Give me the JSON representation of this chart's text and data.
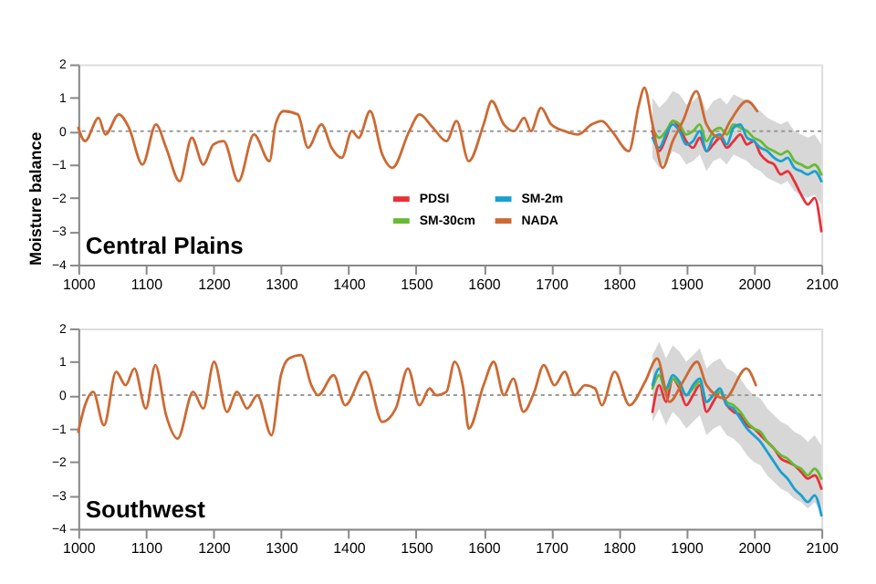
{
  "chart_data": [
    {
      "type": "line",
      "xlabel": null,
      "ylabel": "Moisture balance",
      "annotations": [
        "Central Plains"
      ],
      "xlim": [
        1000,
        2100
      ],
      "xticks": [
        1000,
        1100,
        1200,
        1300,
        1400,
        1500,
        1600,
        1700,
        1800,
        1900,
        2000,
        2100
      ],
      "ylim": [
        -4,
        2
      ],
      "yticks": [
        -4,
        -3,
        -2,
        -1,
        0,
        1,
        2
      ],
      "grid": false,
      "legend": "bottom",
      "line_style": "solid",
      "marker": "none",
      "ref_lines": [
        {
          "axis": "y",
          "value": 0,
          "label": null,
          "color": "#999999",
          "line_style": "dotted"
        }
      ],
      "series": [
        {
          "name": "PDSI",
          "color": "#e8303a",
          "x": [
            1850,
            1860,
            1870,
            1880,
            1890,
            1900,
            1910,
            1920,
            1930,
            1940,
            1950,
            1960,
            1970,
            1980,
            1990,
            2000,
            2010,
            2020,
            2030,
            2040,
            2050,
            2060,
            2070,
            2080,
            2090,
            2100
          ],
          "values": [
            0.0,
            -0.6,
            -0.2,
            0.3,
            0.1,
            -0.3,
            -0.5,
            -0.2,
            -0.6,
            -0.4,
            -0.2,
            -0.5,
            -0.3,
            -0.1,
            -0.4,
            -0.3,
            -0.7,
            -0.9,
            -1.0,
            -1.3,
            -1.2,
            -1.5,
            -1.9,
            -2.2,
            -2.0,
            -3.0
          ]
        },
        {
          "name": "SM-30cm",
          "color": "#66bb33",
          "x": [
            1850,
            1860,
            1870,
            1880,
            1890,
            1900,
            1910,
            1920,
            1930,
            1940,
            1950,
            1960,
            1970,
            1980,
            1990,
            2000,
            2010,
            2020,
            2030,
            2040,
            2050,
            2060,
            2070,
            2080,
            2090,
            2100
          ],
          "values": [
            0.1,
            -0.2,
            0.0,
            0.3,
            0.2,
            -0.1,
            0.0,
            0.2,
            -0.3,
            0.0,
            0.1,
            -0.1,
            0.2,
            0.1,
            0.0,
            -0.2,
            -0.3,
            -0.5,
            -0.6,
            -0.7,
            -0.6,
            -0.9,
            -1.0,
            -1.1,
            -1.0,
            -1.3
          ],
          "lower": [
            -0.8,
            -1.1,
            -0.9,
            -0.6,
            -0.7,
            -1.0,
            -0.9,
            -0.7,
            -1.2,
            -0.9,
            -0.8,
            -1.0,
            -0.7,
            -0.8,
            -0.9,
            -1.1,
            -1.2,
            -1.4,
            -1.5,
            -1.6,
            -1.5,
            -1.8,
            -1.9,
            -2.0,
            -1.9,
            -2.2
          ],
          "upper": [
            1.0,
            0.7,
            0.9,
            1.2,
            1.1,
            0.8,
            0.9,
            1.1,
            0.6,
            0.9,
            1.0,
            0.8,
            1.1,
            1.0,
            0.9,
            0.7,
            0.6,
            0.4,
            0.3,
            0.2,
            0.3,
            0.0,
            -0.1,
            -0.2,
            -0.1,
            -0.4
          ]
        },
        {
          "name": "SM-2m",
          "color": "#1aa0d0",
          "x": [
            1850,
            1860,
            1870,
            1880,
            1890,
            1900,
            1910,
            1920,
            1930,
            1940,
            1950,
            1960,
            1970,
            1980,
            1990,
            2000,
            2010,
            2020,
            2030,
            2040,
            2050,
            2060,
            2070,
            2080,
            2090,
            2100
          ],
          "values": [
            -0.2,
            -0.5,
            -0.1,
            0.2,
            0.0,
            -0.4,
            -0.3,
            0.0,
            -0.6,
            -0.2,
            -0.1,
            -0.4,
            0.1,
            0.2,
            -0.2,
            -0.3,
            -0.5,
            -0.6,
            -0.8,
            -0.9,
            -0.8,
            -1.1,
            -1.2,
            -1.3,
            -1.2,
            -1.5
          ]
        },
        {
          "name": "NADA",
          "color": "#cc6a33",
          "x": [
            1000,
            1010,
            1030,
            1040,
            1060,
            1075,
            1095,
            1115,
            1130,
            1150,
            1168,
            1185,
            1200,
            1215,
            1237,
            1260,
            1283,
            1292,
            1304,
            1325,
            1340,
            1360,
            1375,
            1390,
            1405,
            1415,
            1432,
            1450,
            1465,
            1490,
            1505,
            1525,
            1545,
            1560,
            1578,
            1600,
            1612,
            1630,
            1645,
            1660,
            1670,
            1685,
            1700,
            1720,
            1740,
            1760,
            1775,
            1790,
            1815,
            1830,
            1838,
            1850,
            1865,
            1880,
            1895,
            1915,
            1930,
            1950,
            1965,
            1990,
            2005
          ],
          "values": [
            0.1,
            -0.3,
            0.4,
            -0.1,
            0.5,
            0.1,
            -1.0,
            0.2,
            -0.5,
            -1.5,
            -0.2,
            -1.0,
            -0.4,
            -0.3,
            -1.5,
            -0.1,
            -0.9,
            0.2,
            0.6,
            0.5,
            -0.5,
            0.2,
            -0.5,
            -0.8,
            0.0,
            -0.2,
            0.6,
            -0.7,
            -1.1,
            0.0,
            0.5,
            0.1,
            -0.3,
            0.3,
            -0.9,
            0.2,
            0.9,
            0.2,
            0.0,
            0.4,
            0.0,
            0.7,
            0.2,
            0.0,
            -0.1,
            0.2,
            0.3,
            0.0,
            -0.6,
            0.8,
            1.3,
            0.2,
            -1.1,
            -0.3,
            0.3,
            1.2,
            0.2,
            -0.2,
            0.3,
            0.9,
            0.6
          ]
        }
      ]
    },
    {
      "type": "line",
      "xlabel": null,
      "annotations": [
        "Southwest"
      ],
      "xlim": [
        1000,
        2100
      ],
      "xticks": [
        1000,
        1100,
        1200,
        1300,
        1400,
        1500,
        1600,
        1700,
        1800,
        1900,
        2000,
        2100
      ],
      "ylim": [
        -4,
        2
      ],
      "yticks": [
        -4,
        -3,
        -2,
        -1,
        0,
        1,
        2
      ],
      "grid": false,
      "legend": false,
      "line_style": "solid",
      "marker": "none",
      "ref_lines": [
        {
          "axis": "y",
          "value": 0,
          "label": null,
          "color": "#999999",
          "line_style": "dotted"
        }
      ],
      "series": [
        {
          "color": "#e8303a",
          "x": [
            1850,
            1860,
            1870,
            1880,
            1890,
            1900,
            1910,
            1920,
            1930,
            1940,
            1950,
            1960,
            1970,
            1980,
            1990,
            2000,
            2010,
            2020,
            2030,
            2040,
            2050,
            2060,
            2070,
            2080,
            2090,
            2100
          ],
          "values": [
            -0.5,
            0.3,
            -0.2,
            0.5,
            0.2,
            -0.3,
            0.0,
            0.3,
            -0.5,
            -0.2,
            0.1,
            -0.3,
            -0.5,
            -0.6,
            -0.9,
            -1.0,
            -1.2,
            -1.4,
            -1.6,
            -1.9,
            -2.0,
            -2.1,
            -2.3,
            -2.5,
            -2.4,
            -2.8
          ]
        },
        {
          "color": "#66bb33",
          "x": [
            1850,
            1860,
            1870,
            1880,
            1890,
            1900,
            1910,
            1920,
            1930,
            1940,
            1950,
            1960,
            1970,
            1980,
            1990,
            2000,
            2010,
            2020,
            2030,
            2040,
            2050,
            2060,
            2070,
            2080,
            2090,
            2100
          ],
          "values": [
            0.2,
            0.6,
            0.1,
            0.5,
            0.3,
            0.0,
            0.2,
            0.4,
            -0.2,
            0.0,
            0.1,
            -0.2,
            -0.3,
            -0.5,
            -0.8,
            -1.0,
            -1.1,
            -1.4,
            -1.6,
            -1.8,
            -1.9,
            -2.1,
            -2.2,
            -2.4,
            -2.2,
            -2.5
          ],
          "lower": [
            -0.8,
            -0.4,
            -0.9,
            -0.5,
            -0.7,
            -1.0,
            -0.8,
            -0.6,
            -1.2,
            -1.0,
            -0.9,
            -1.2,
            -1.3,
            -1.5,
            -1.8,
            -2.0,
            -2.1,
            -2.4,
            -2.6,
            -2.8,
            -2.9,
            -3.1,
            -3.2,
            -3.4,
            -3.2,
            -3.5
          ],
          "upper": [
            1.2,
            1.6,
            1.1,
            1.5,
            1.3,
            1.0,
            1.2,
            1.4,
            0.8,
            1.0,
            1.1,
            0.8,
            0.7,
            0.5,
            0.2,
            0.0,
            -0.1,
            -0.4,
            -0.6,
            -0.8,
            -0.9,
            -1.1,
            -1.2,
            -1.4,
            -1.2,
            -1.5
          ]
        },
        {
          "color": "#1aa0d0",
          "x": [
            1850,
            1860,
            1870,
            1880,
            1890,
            1900,
            1910,
            1920,
            1930,
            1940,
            1950,
            1960,
            1970,
            1980,
            1990,
            2000,
            2010,
            2020,
            2030,
            2040,
            2050,
            2060,
            2070,
            2080,
            2090,
            2100
          ],
          "values": [
            0.3,
            0.8,
            0.2,
            0.6,
            0.4,
            0.0,
            0.3,
            0.5,
            -0.2,
            0.0,
            0.2,
            -0.3,
            -0.4,
            -0.7,
            -1.0,
            -1.2,
            -1.4,
            -1.7,
            -2.0,
            -2.3,
            -2.5,
            -2.8,
            -3.0,
            -3.2,
            -3.0,
            -3.6
          ]
        },
        {
          "color": "#cc6a33",
          "x": [
            1000,
            1010,
            1022,
            1038,
            1056,
            1070,
            1083,
            1100,
            1114,
            1130,
            1147,
            1170,
            1185,
            1201,
            1220,
            1235,
            1250,
            1265,
            1286,
            1300,
            1312,
            1330,
            1345,
            1355,
            1378,
            1395,
            1425,
            1450,
            1470,
            1488,
            1505,
            1520,
            1530,
            1545,
            1557,
            1570,
            1578,
            1600,
            1615,
            1630,
            1644,
            1659,
            1675,
            1689,
            1705,
            1720,
            1735,
            1750,
            1765,
            1775,
            1794,
            1816,
            1839,
            1857,
            1875,
            1895,
            1916,
            1930,
            1957,
            1989,
            2003
          ],
          "values": [
            -1.1,
            -0.3,
            0.1,
            -0.9,
            0.7,
            0.3,
            0.8,
            -0.4,
            0.9,
            -0.6,
            -1.3,
            0.1,
            -0.4,
            1.0,
            -0.5,
            0.1,
            -0.4,
            0.0,
            -1.2,
            0.6,
            1.1,
            1.2,
            0.3,
            0.0,
            0.6,
            -0.3,
            0.7,
            -0.8,
            -0.4,
            0.8,
            -0.3,
            0.2,
            0.0,
            0.1,
            1.0,
            0.2,
            -1.0,
            0.3,
            1.0,
            0.0,
            0.5,
            -0.5,
            0.1,
            0.9,
            0.3,
            0.7,
            0.0,
            0.3,
            0.2,
            -0.3,
            0.7,
            -0.3,
            0.4,
            1.1,
            -0.2,
            0.4,
            1.0,
            0.3,
            -0.1,
            0.8,
            0.3
          ]
        }
      ]
    }
  ]
}
